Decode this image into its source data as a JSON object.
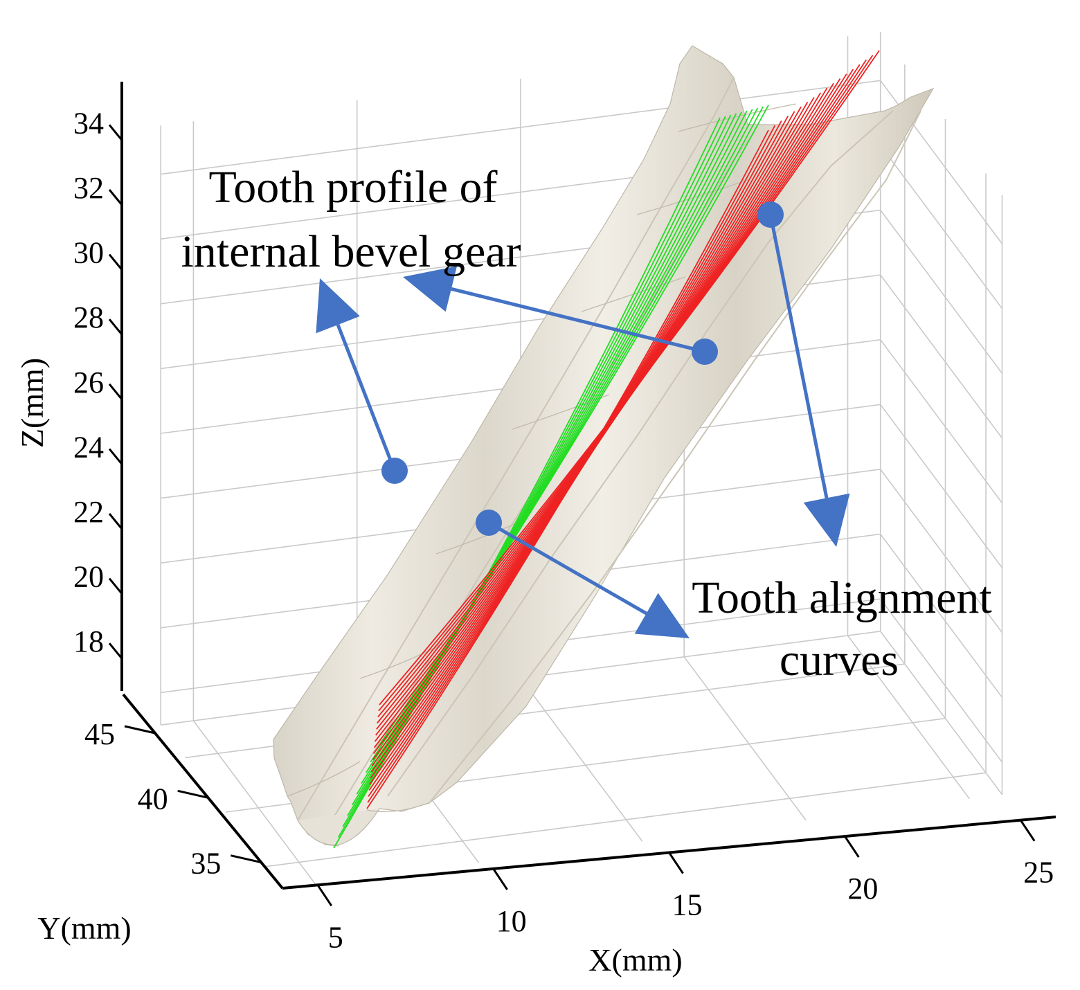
{
  "chart_data": {
    "type": "surface3d",
    "title": "",
    "axes": {
      "x": {
        "label": "X(mm)",
        "ticks": [
          5,
          10,
          15,
          20,
          25
        ]
      },
      "y": {
        "label": "Y(mm)",
        "ticks": [
          35,
          40,
          45
        ]
      },
      "z": {
        "label": "Z(mm)",
        "ticks": [
          18,
          20,
          22,
          24,
          26,
          28,
          30,
          32,
          34
        ]
      }
    },
    "grid": true,
    "surface": {
      "name": "Tooth profile of internal bevel gear",
      "color": "#e8e4da"
    },
    "curves": [
      {
        "name": "Tooth alignment curves",
        "color": "#22dd22",
        "count": 10
      },
      {
        "name": "Tooth alignment curves",
        "color": "#ee2222",
        "count": 18
      }
    ],
    "annotations": [
      {
        "line1": "Tooth profile of",
        "line2": "internal bevel gear"
      },
      {
        "line1": "Tooth alignment",
        "line2": "curves"
      }
    ],
    "arrow_color": "#4472c4"
  }
}
